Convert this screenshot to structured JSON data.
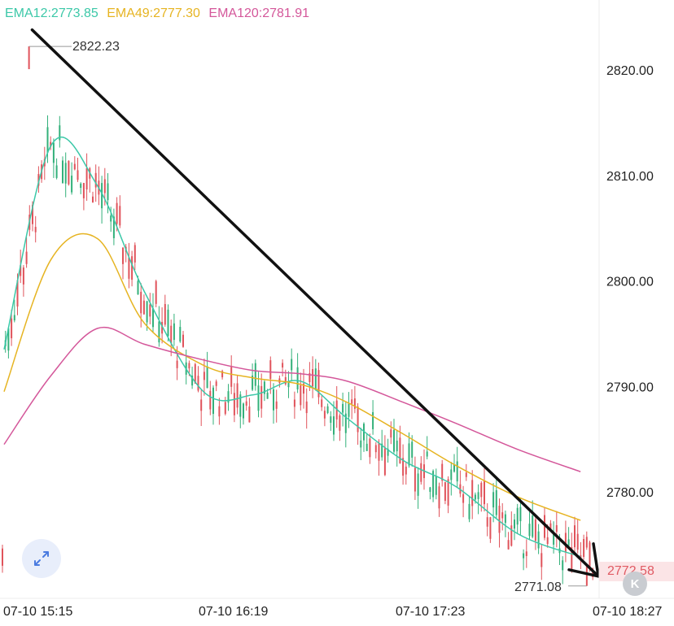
{
  "legend": {
    "ema12": "EMA12:2773.85",
    "ema49": "EMA49:2777.30",
    "ema120": "EMA120:2781.91"
  },
  "colors": {
    "ema12": "#3cc8a8",
    "ema49": "#e6b422",
    "ema120": "#d4579a",
    "up": "#33b07a",
    "down": "#e0535b",
    "trendline": "#111111",
    "grid": "#eeeeee",
    "current_price_tag": "#e05a63"
  },
  "annotations": {
    "high_label": "2822.23",
    "low_label": "2771.08",
    "current_price": "2772.58"
  },
  "icons": {
    "fit": "expand-arrows-icon",
    "end": "jump-to-latest-icon",
    "end_glyph": "K"
  },
  "chart_data": {
    "type": "line",
    "y_axis_position": "right",
    "ylim": [
      2770,
      2826
    ],
    "y_ticks": [
      "2820.00",
      "2810.00",
      "2800.00",
      "2790.00",
      "2780.00"
    ],
    "y_tick_values": [
      2820,
      2810,
      2800,
      2790,
      2780
    ],
    "x_tick_labels": [
      "07-10 15:15",
      "07-10 16:19",
      "07-10 17:23",
      "07-10 18:27"
    ],
    "x": [
      "07-10 15:15",
      "07-10 15:30",
      "07-10 15:45",
      "07-10 16:00",
      "07-10 16:19",
      "07-10 16:35",
      "07-10 16:50",
      "07-10 17:05",
      "07-10 17:23",
      "07-10 17:40",
      "07-10 18:00",
      "07-10 18:20"
    ],
    "grid": false,
    "legend_position": "top-left",
    "series": [
      {
        "name": "EMA12",
        "values": [
          2793.5,
          2812.8,
          2809.0,
          2799.0,
          2789.5,
          2789.2,
          2790.5,
          2787.0,
          2783.0,
          2780.5,
          2776.0,
          2773.85
        ]
      },
      {
        "name": "EMA49",
        "values": [
          2789.5,
          2802.0,
          2804.0,
          2796.0,
          2792.0,
          2790.8,
          2790.2,
          2788.5,
          2785.5,
          2782.5,
          2779.5,
          2777.3
        ]
      },
      {
        "name": "EMA120",
        "values": [
          2784.5,
          2791.0,
          2795.5,
          2794.0,
          2792.5,
          2791.5,
          2791.2,
          2790.5,
          2788.5,
          2786.5,
          2784.0,
          2781.91
        ]
      }
    ],
    "trendline": {
      "from": {
        "x": "07-10 15:24",
        "y": 2823.8
      },
      "to": {
        "x": "07-10 18:27",
        "y": 2772.0
      }
    },
    "high": {
      "value": 2822.23,
      "x": "07-10 15:23"
    },
    "low": {
      "value": 2771.08,
      "x": "07-10 18:22"
    },
    "last_price": 2772.58
  }
}
